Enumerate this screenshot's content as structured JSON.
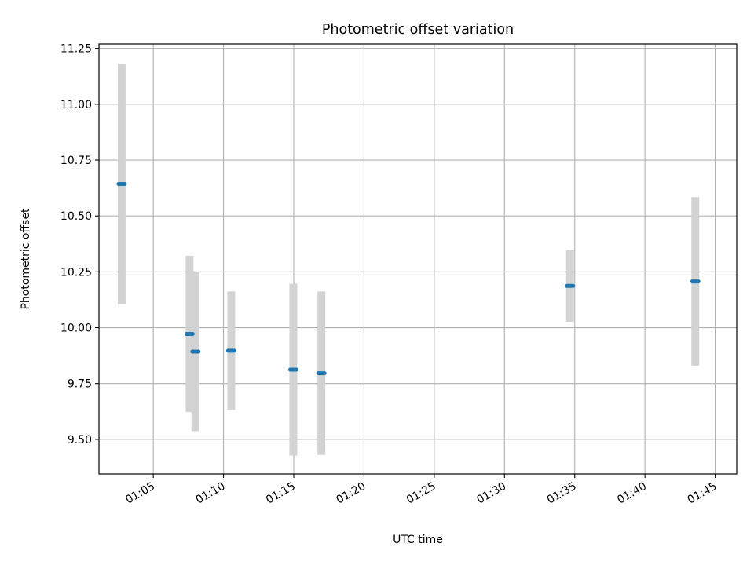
{
  "chart_data": {
    "type": "scatter",
    "title": "Photometric offset variation",
    "xlabel": "UTC time",
    "ylabel": "Photometric offset",
    "xlim": [
      "01:01:08",
      "01:46:32"
    ],
    "ylim": [
      9.345,
      11.27
    ],
    "x_ticks": [
      "01:05",
      "01:10",
      "01:15",
      "01:20",
      "01:25",
      "01:30",
      "01:35",
      "01:40",
      "01:45"
    ],
    "y_ticks": [
      "9.50",
      "9.75",
      "10.00",
      "10.25",
      "10.50",
      "10.75",
      "11.00",
      "11.25"
    ],
    "grid": true,
    "colors": {
      "point": "#1f77b4",
      "errorbar": "#d3d3d3",
      "grid": "#b0b0b0"
    },
    "series": [
      {
        "points": [
          {
            "x": "01:02:45",
            "y": 10.643,
            "yerr": 0.538
          },
          {
            "x": "01:07:35",
            "y": 9.972,
            "yerr": 0.35
          },
          {
            "x": "01:08:00",
            "y": 9.893,
            "yerr": 0.356
          },
          {
            "x": "01:10:33",
            "y": 9.897,
            "yerr": 0.265
          },
          {
            "x": "01:14:58",
            "y": 9.812,
            "yerr": 0.385
          },
          {
            "x": "01:16:58",
            "y": 9.796,
            "yerr": 0.366
          },
          {
            "x": "01:34:40",
            "y": 10.187,
            "yerr": 0.16
          },
          {
            "x": "01:43:35",
            "y": 10.207,
            "yerr": 0.377
          }
        ]
      }
    ]
  }
}
